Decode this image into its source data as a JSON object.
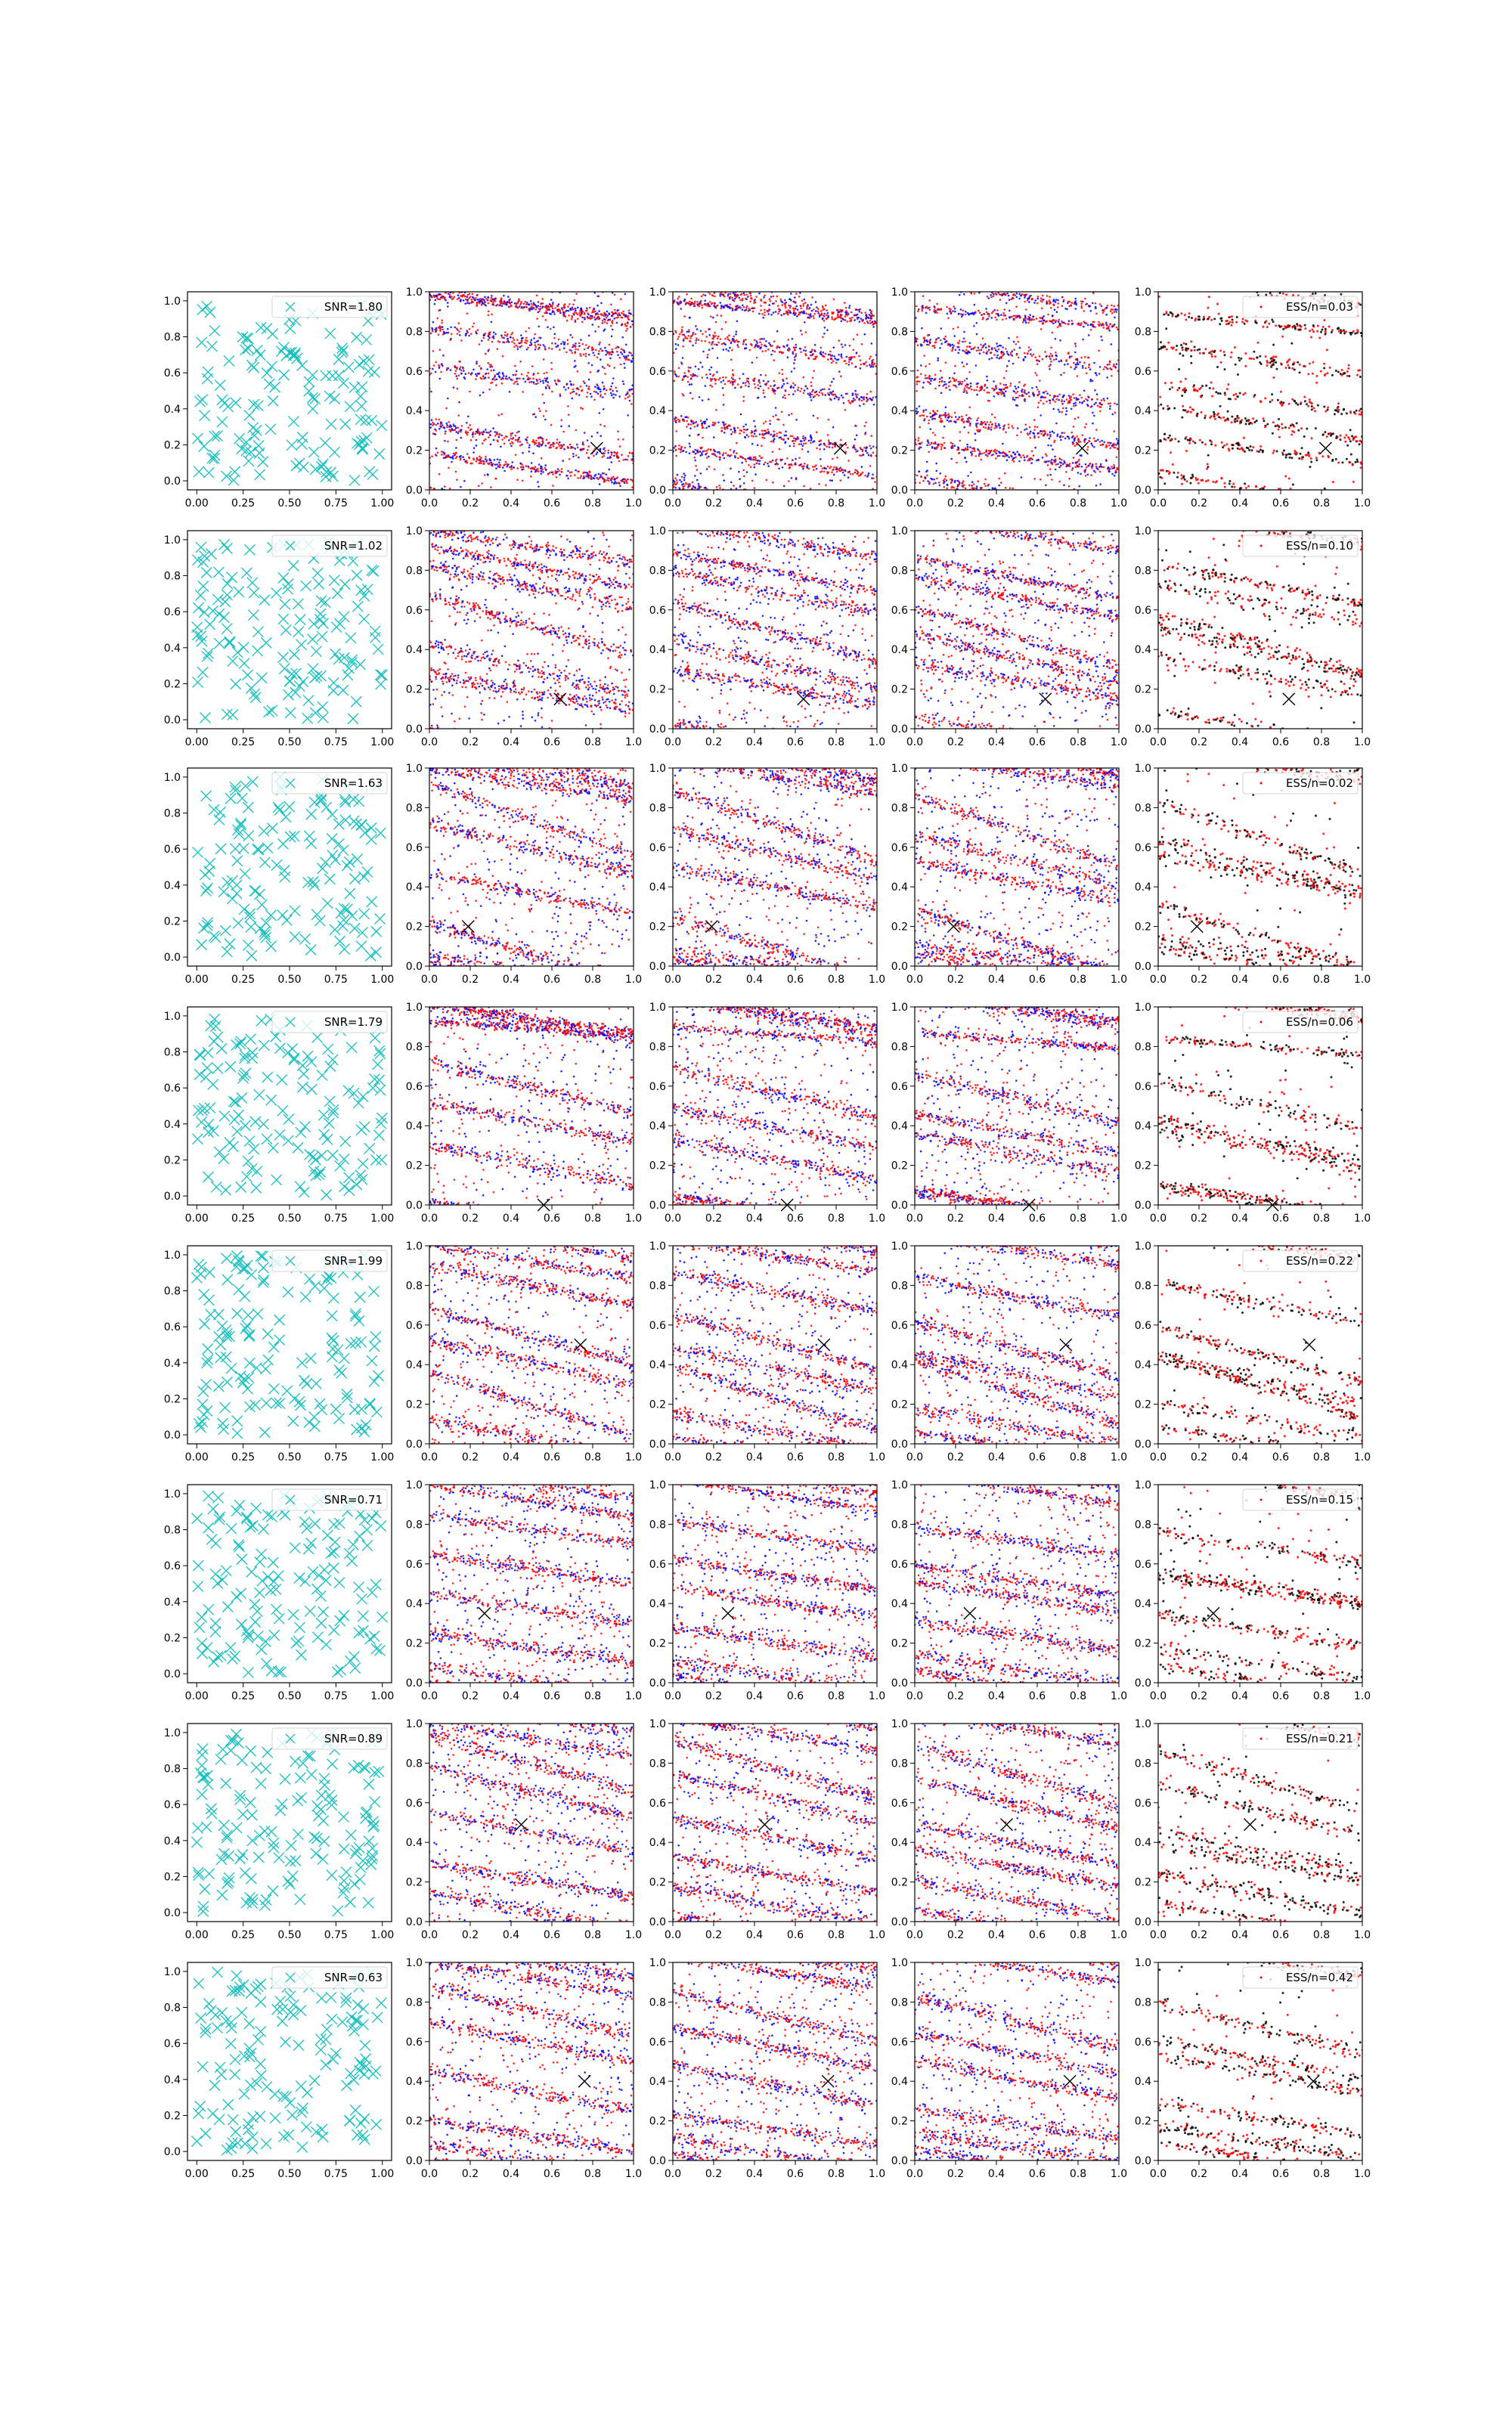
{
  "chart_data": {
    "type": "scatter",
    "layout": {
      "rows": 8,
      "columns": 5
    },
    "axes": {
      "first_column": {
        "xlim": [
          -0.05,
          1.05
        ],
        "ylim": [
          -0.05,
          1.05
        ],
        "xticks": [
          "0.00",
          "0.25",
          "0.50",
          "0.75",
          "1.00"
        ],
        "yticks": [
          "0.0",
          "0.2",
          "0.4",
          "0.6",
          "0.8",
          "1.0"
        ]
      },
      "other_columns": {
        "xlim": [
          0,
          1
        ],
        "ylim": [
          0,
          1
        ],
        "xticks": [
          "0.0",
          "0.2",
          "0.4",
          "0.6",
          "0.8",
          "1.0"
        ],
        "yticks": [
          "0.0",
          "0.2",
          "0.4",
          "0.6",
          "0.8",
          "1.0"
        ]
      }
    },
    "colors": {
      "design_points": "#17bfbf",
      "red": "#ff0000",
      "blue": "#0000ff",
      "black": "#000000",
      "true_marker": "#000000"
    },
    "grid": false,
    "legend_placement": "upper right",
    "panel_columns": [
      {
        "column": 1,
        "content": "design points (cyan x markers, ~150 per panel)",
        "legend_prefix": "SNR="
      },
      {
        "column": 2,
        "content": "posterior samples (red and blue dots) with true parameter (black x)"
      },
      {
        "column": 3,
        "content": "posterior samples (red and blue dots) with true parameter (black x)"
      },
      {
        "column": 4,
        "content": "posterior samples (red and blue dots) with true parameter (black x)"
      },
      {
        "column": 5,
        "content": "weighted samples (red and black dots) with true parameter (black x)",
        "legend_prefix": "ESS/n="
      }
    ],
    "rows": [
      {
        "snr": "SNR=1.80",
        "ess": "ESS/n=0.03",
        "true_point": [
          0.82,
          0.21
        ],
        "bands": [
          [
            0.1,
            0.0,
            -0.16,
            0.028,
            0.26
          ],
          [
            0.0,
            0.33,
            -0.17,
            0.028,
            0.22
          ],
          [
            0.0,
            0.18,
            -0.14,
            0.022,
            0.14
          ],
          [
            0.0,
            0.98,
            -0.1,
            0.02,
            0.12
          ],
          [
            0.0,
            0.62,
            -0.14,
            0.035,
            0.12
          ],
          [
            0.0,
            0.82,
            -0.15,
            0.035,
            0.14
          ]
        ]
      },
      {
        "snr": "SNR=1.02",
        "ess": "ESS/n=0.10",
        "true_point": [
          0.64,
          0.15
        ],
        "bands": [
          [
            0.0,
            0.0,
            -0.16,
            0.028,
            0.26
          ],
          [
            0.0,
            0.67,
            -0.3,
            0.03,
            0.22
          ],
          [
            0.0,
            0.92,
            -0.2,
            0.025,
            0.16
          ],
          [
            0.0,
            0.42,
            -0.25,
            0.035,
            0.18
          ],
          [
            0.0,
            0.82,
            -0.2,
            0.035,
            0.12
          ],
          [
            0.0,
            0.27,
            -0.18,
            0.035,
            0.12
          ]
        ]
      },
      {
        "snr": "SNR=1.63",
        "ess": "ESS/n=0.02",
        "true_point": [
          0.19,
          0.2
        ],
        "bands": [
          [
            0.0,
            0.0,
            -0.16,
            0.028,
            0.26
          ],
          [
            0.0,
            0.22,
            -0.32,
            0.03,
            0.24
          ],
          [
            0.0,
            0.92,
            -0.36,
            0.03,
            0.18
          ],
          [
            0.0,
            0.47,
            -0.2,
            0.03,
            0.14
          ],
          [
            0.0,
            0.72,
            -0.25,
            0.035,
            0.14
          ],
          [
            0.0,
            0.05,
            -0.15,
            0.035,
            0.12
          ]
        ]
      },
      {
        "snr": "SNR=1.79",
        "ess": "ESS/n=0.06",
        "true_point": [
          0.56,
          0.0
        ],
        "bands": [
          [
            0.05,
            0.0,
            -0.16,
            0.028,
            0.26
          ],
          [
            0.0,
            0.93,
            -0.08,
            0.02,
            0.22
          ],
          [
            0.0,
            0.02,
            -0.15,
            0.02,
            0.16
          ],
          [
            0.0,
            0.52,
            -0.2,
            0.03,
            0.12
          ],
          [
            0.0,
            0.72,
            -0.25,
            0.035,
            0.12
          ],
          [
            0.0,
            0.3,
            -0.2,
            0.035,
            0.12
          ]
        ]
      },
      {
        "snr": "SNR=1.99",
        "ess": "ESS/n=0.22",
        "true_point": [
          0.74,
          0.5
        ],
        "bands": [
          [
            0.0,
            0.0,
            -0.16,
            0.028,
            0.26
          ],
          [
            0.0,
            0.68,
            -0.28,
            0.03,
            0.26
          ],
          [
            0.0,
            0.36,
            -0.32,
            0.03,
            0.22
          ],
          [
            0.0,
            0.9,
            -0.2,
            0.03,
            0.16
          ],
          [
            0.0,
            0.12,
            -0.18,
            0.035,
            0.16
          ],
          [
            0.0,
            0.52,
            -0.22,
            0.035,
            0.14
          ]
        ]
      },
      {
        "snr": "SNR=0.71",
        "ess": "ESS/n=0.15",
        "true_point": [
          0.27,
          0.35
        ],
        "bands": [
          [
            0.0,
            0.0,
            -0.16,
            0.028,
            0.26
          ],
          [
            0.0,
            0.45,
            -0.15,
            0.03,
            0.22
          ],
          [
            0.0,
            0.85,
            -0.15,
            0.03,
            0.18
          ],
          [
            0.0,
            0.65,
            -0.15,
            0.03,
            0.18
          ],
          [
            0.0,
            0.25,
            -0.15,
            0.035,
            0.18
          ],
          [
            0.0,
            0.08,
            -0.15,
            0.035,
            0.16
          ]
        ]
      },
      {
        "snr": "SNR=0.89",
        "ess": "ESS/n=0.21",
        "true_point": [
          0.45,
          0.49
        ],
        "bands": [
          [
            0.0,
            0.0,
            -0.16,
            0.028,
            0.26
          ],
          [
            0.0,
            0.55,
            -0.2,
            0.03,
            0.22
          ],
          [
            0.0,
            0.78,
            -0.25,
            0.03,
            0.2
          ],
          [
            0.0,
            0.3,
            -0.18,
            0.03,
            0.18
          ],
          [
            0.0,
            0.95,
            -0.3,
            0.035,
            0.16
          ],
          [
            0.0,
            0.15,
            -0.2,
            0.035,
            0.16
          ]
        ]
      },
      {
        "snr": "SNR=0.63",
        "ess": "ESS/n=0.42",
        "true_point": [
          0.76,
          0.4
        ],
        "bands": [
          [
            0.0,
            0.0,
            -0.16,
            0.028,
            0.26
          ],
          [
            0.0,
            0.2,
            -0.15,
            0.03,
            0.22
          ],
          [
            0.0,
            0.45,
            -0.2,
            0.03,
            0.18
          ],
          [
            0.0,
            0.7,
            -0.2,
            0.03,
            0.18
          ],
          [
            0.0,
            0.88,
            -0.25,
            0.035,
            0.16
          ],
          [
            0.0,
            0.08,
            -0.15,
            0.035,
            0.16
          ]
        ]
      }
    ]
  }
}
